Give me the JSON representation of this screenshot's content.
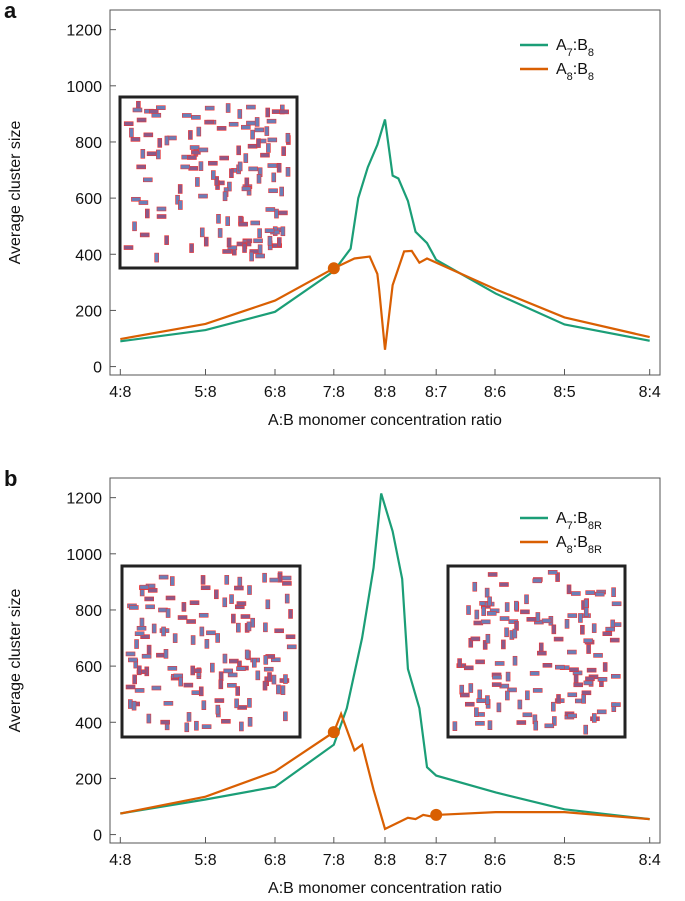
{
  "chart_data": [
    {
      "type": "line",
      "panel": "a",
      "ylabel": "Average cluster size",
      "xlabel": "A:B monomer concentration ratio",
      "xlim": [
        -0.72,
        0.72
      ],
      "ylim": [
        -30,
        1270
      ],
      "xticks": [
        {
          "value": -0.693,
          "label": "4:8"
        },
        {
          "value": -0.47,
          "label": "5:8"
        },
        {
          "value": -0.288,
          "label": "6:8"
        },
        {
          "value": -0.134,
          "label": "7:8"
        },
        {
          "value": 0,
          "label": "8:8"
        },
        {
          "value": 0.134,
          "label": "8:7"
        },
        {
          "value": 0.288,
          "label": "8:6"
        },
        {
          "value": 0.47,
          "label": "8:5"
        },
        {
          "value": 0.693,
          "label": "8:4"
        }
      ],
      "yticks": [
        0,
        200,
        400,
        600,
        800,
        1000,
        1200
      ],
      "series": [
        {
          "name": "A7:B8",
          "color": "#1b9e77",
          "x": [
            -0.693,
            -0.47,
            -0.288,
            -0.134,
            -0.09,
            -0.07,
            -0.045,
            -0.02,
            0,
            0.02,
            0.035,
            0.06,
            0.08,
            0.11,
            0.134,
            0.29,
            0.47,
            0.693
          ],
          "values": [
            90,
            130,
            195,
            340,
            420,
            600,
            710,
            790,
            880,
            680,
            670,
            590,
            480,
            440,
            380,
            260,
            150,
            92
          ]
        },
        {
          "name": "A8:B8",
          "color": "#d95f02",
          "x": [
            -0.693,
            -0.47,
            -0.288,
            -0.134,
            -0.08,
            -0.04,
            -0.02,
            -0.015,
            0,
            0.02,
            0.05,
            0.07,
            0.09,
            0.11,
            0.29,
            0.47,
            0.693
          ],
          "values": [
            98,
            152,
            235,
            350,
            385,
            392,
            330,
            270,
            60,
            290,
            410,
            412,
            370,
            385,
            275,
            175,
            105
          ],
          "markers": [
            {
              "x": -0.134,
              "value": 350
            }
          ]
        }
      ]
    },
    {
      "type": "line",
      "panel": "b",
      "ylabel": "Average cluster size",
      "xlabel": "A:B monomer concentration ratio",
      "xlim": [
        -0.72,
        0.72
      ],
      "ylim": [
        -30,
        1270
      ],
      "xticks": [
        {
          "value": -0.693,
          "label": "4:8"
        },
        {
          "value": -0.47,
          "label": "5:8"
        },
        {
          "value": -0.288,
          "label": "6:8"
        },
        {
          "value": -0.134,
          "label": "7:8"
        },
        {
          "value": 0,
          "label": "8:8"
        },
        {
          "value": 0.134,
          "label": "8:7"
        },
        {
          "value": 0.288,
          "label": "8:6"
        },
        {
          "value": 0.47,
          "label": "8:5"
        },
        {
          "value": 0.693,
          "label": "8:4"
        }
      ],
      "yticks": [
        0,
        200,
        400,
        600,
        800,
        1000,
        1200
      ],
      "series": [
        {
          "name": "A7:B8R",
          "color": "#1b9e77",
          "x": [
            -0.693,
            -0.47,
            -0.288,
            -0.134,
            -0.1,
            -0.06,
            -0.03,
            -0.01,
            0.02,
            0.045,
            0.06,
            0.09,
            0.11,
            0.134,
            0.29,
            0.47,
            0.693
          ],
          "values": [
            75,
            125,
            170,
            320,
            450,
            700,
            950,
            1215,
            1080,
            910,
            590,
            450,
            240,
            210,
            150,
            90,
            55
          ]
        },
        {
          "name": "A8:B8R",
          "color": "#d95f02",
          "x": [
            -0.693,
            -0.47,
            -0.288,
            -0.134,
            -0.115,
            -0.08,
            -0.06,
            -0.03,
            0,
            0.03,
            0.06,
            0.08,
            0.1,
            0.12,
            0.134,
            0.29,
            0.47,
            0.693
          ],
          "values": [
            75,
            135,
            225,
            365,
            430,
            300,
            320,
            160,
            20,
            40,
            60,
            55,
            70,
            65,
            70,
            80,
            80,
            55
          ],
          "markers": [
            {
              "x": -0.134,
              "value": 365
            },
            {
              "x": 0.134,
              "value": 70
            }
          ]
        }
      ]
    }
  ]
}
